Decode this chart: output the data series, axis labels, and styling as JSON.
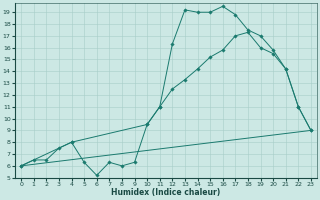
{
  "xlabel": "Humidex (Indice chaleur)",
  "xlim": [
    -0.5,
    23.5
  ],
  "ylim": [
    5.0,
    19.8
  ],
  "xticks": [
    0,
    1,
    2,
    3,
    4,
    5,
    6,
    7,
    8,
    9,
    10,
    11,
    12,
    13,
    14,
    15,
    16,
    17,
    18,
    19,
    20,
    21,
    22,
    23
  ],
  "yticks": [
    5,
    6,
    7,
    8,
    9,
    10,
    11,
    12,
    13,
    14,
    15,
    16,
    17,
    18,
    19
  ],
  "line_color": "#1a7a6e",
  "bg_color": "#cce8e4",
  "grid_color": "#a8cec9",
  "line1_x": [
    0,
    1,
    2,
    3,
    4,
    5,
    6,
    7,
    8,
    9,
    10,
    11,
    12,
    13,
    14,
    15,
    16,
    17,
    18,
    19,
    20,
    21,
    22,
    23
  ],
  "line1_y": [
    6.0,
    6.5,
    6.5,
    7.5,
    8.0,
    6.3,
    5.2,
    6.3,
    6.0,
    6.3,
    9.5,
    11.0,
    16.3,
    19.2,
    19.0,
    19.0,
    19.5,
    18.8,
    17.5,
    17.0,
    15.8,
    14.2,
    11.0,
    9.0
  ],
  "line2_x": [
    0,
    4,
    10,
    11,
    12,
    13,
    14,
    15,
    16,
    17,
    18,
    19,
    20,
    21,
    22,
    23
  ],
  "line2_y": [
    6.0,
    8.0,
    9.5,
    11.0,
    12.5,
    13.3,
    14.2,
    15.2,
    15.8,
    17.0,
    17.3,
    16.0,
    15.5,
    14.2,
    11.0,
    9.0
  ],
  "line3_x": [
    0,
    23
  ],
  "line3_y": [
    6.0,
    9.0
  ]
}
